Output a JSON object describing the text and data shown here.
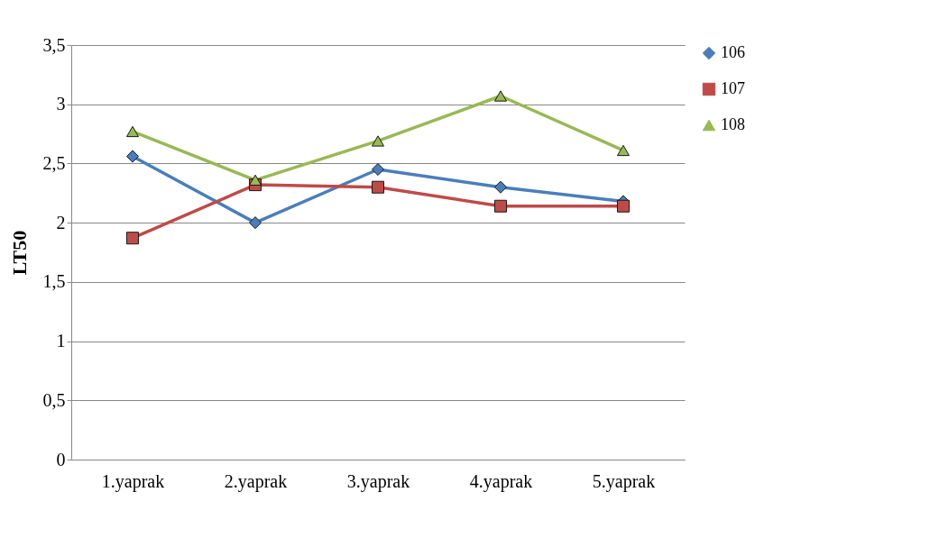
{
  "chart_data": {
    "type": "line",
    "ylabel": "LT50",
    "categories": [
      "1.yaprak",
      "2.yaprak",
      "3.yaprak",
      "4.yaprak",
      "5.yaprak"
    ],
    "series": [
      {
        "name": "106",
        "color": "#4a7ebb",
        "marker": "diamond",
        "values": [
          2.56,
          2.0,
          2.45,
          2.3,
          2.18
        ]
      },
      {
        "name": "107",
        "color": "#be4b48",
        "marker": "square",
        "values": [
          1.87,
          2.32,
          2.3,
          2.14,
          2.14
        ]
      },
      {
        "name": "108",
        "color": "#98b954",
        "marker": "triangle",
        "values": [
          2.77,
          2.36,
          2.69,
          3.07,
          2.61
        ]
      }
    ],
    "ylim": [
      0,
      3.5
    ],
    "yticks": [
      0,
      {
        "value": 0.5,
        "label": "0,5"
      },
      1,
      {
        "value": 1.5,
        "label": "1,5"
      },
      2,
      {
        "value": 2.5,
        "label": "2,5"
      },
      3,
      {
        "value": 3.5,
        "label": "3,5"
      }
    ],
    "grid": "y",
    "legend": "right",
    "line_style": "solid"
  }
}
